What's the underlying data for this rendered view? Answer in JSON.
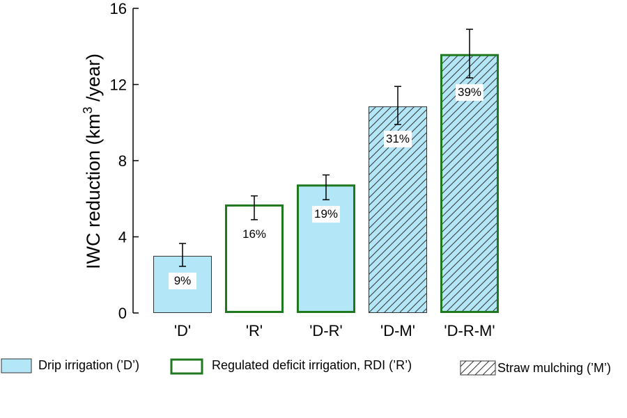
{
  "chart_data": {
    "type": "bar",
    "title": "",
    "xlabel": "",
    "ylabel": "IWC reduction (km",
    "ylabel_superscript": "3",
    "ylabel_unit": " /year)",
    "ylim": [
      0,
      16
    ],
    "yticks": [
      "0",
      "4",
      "8",
      "12",
      "16"
    ],
    "grid": false,
    "categories": [
      "'D'",
      "'R'",
      "'D-R'",
      "'D-M'",
      "'D-R-M'"
    ],
    "values": [
      3.0,
      5.7,
      6.75,
      10.85,
      13.6
    ],
    "error_low": [
      2.45,
      4.9,
      5.95,
      9.9,
      12.35
    ],
    "error_high": [
      3.65,
      6.15,
      7.25,
      11.9,
      14.9
    ],
    "percent_labels": [
      "9%",
      "16%",
      "19%",
      "31%",
      "39%"
    ],
    "fill": [
      "drip",
      "none",
      "drip",
      "drip",
      "drip"
    ],
    "outline": [
      "thin",
      "green",
      "green",
      "thin",
      "green"
    ],
    "hatched": [
      false,
      false,
      false,
      true,
      true
    ],
    "legend": [
      {
        "key": "drip",
        "label": "Drip irrigation (’D’)"
      },
      {
        "key": "rdi",
        "label": "Regulated deficit irrigation, RDI (’R’)"
      },
      {
        "key": "mulch",
        "label": "Straw mulching (’M’)"
      }
    ],
    "legend_position": "bottom",
    "colors": {
      "drip": "#b3e6f7",
      "rdi_outline": "#1f7a1f",
      "thin_outline": "#333333",
      "hatch": "#333333"
    }
  }
}
